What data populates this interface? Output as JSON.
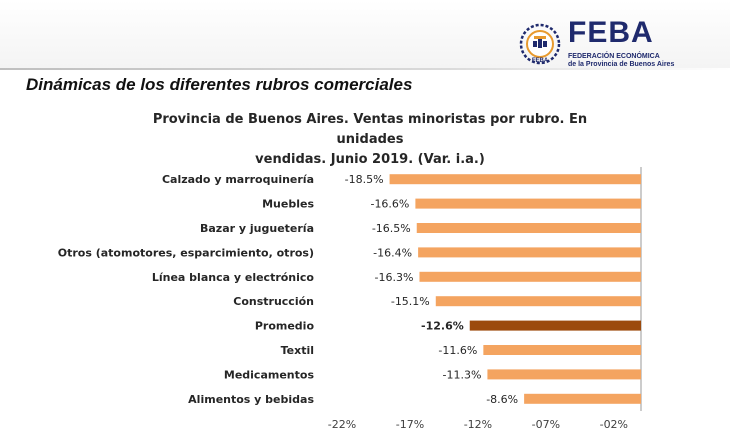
{
  "header": {
    "logo_emblem_text": "FEBA",
    "logo_word": "FEBA",
    "logo_subtitle_line1": "FEDERACIÓN ECONÓMICA",
    "logo_subtitle_line2": "de la Provincia de Buenos Aires",
    "brand_color": "#1f2a6d",
    "emblem_color": "#e89a2e"
  },
  "section_title": "Dinámicas de los diferentes rubros comerciales",
  "chart_data": {
    "type": "bar",
    "orientation": "horizontal",
    "title_line1": "Provincia de Buenos Aires. Ventas minoristas por rubro. En unidades",
    "title_line2": "vendidas. Junio 2019. (Var. i.a.)",
    "categories": [
      "Calzado y marroquinería",
      "Muebles",
      "Bazar y juguetería",
      "Otros (atomotores, esparcimiento, otros)",
      "Línea blanca y electrónico",
      "Construcción",
      "Promedio",
      "Textil",
      "Medicamentos",
      "Alimentos y bebidas"
    ],
    "values": [
      -18.5,
      -16.6,
      -16.5,
      -16.4,
      -16.3,
      -15.1,
      -12.6,
      -11.6,
      -11.3,
      -8.6
    ],
    "value_labels": [
      "-18.5%",
      "-16.6%",
      "-16.5%",
      "-16.4%",
      "-16.3%",
      "-15.1%",
      "-12.6%",
      "-11.6%",
      "-11.3%",
      "-8.6%"
    ],
    "highlight_category": "Promedio",
    "xlim": [
      -22,
      0
    ],
    "x_ticks": [
      -22,
      -17,
      -12,
      -7,
      -2
    ],
    "x_tick_labels": [
      "-22%",
      "-17%",
      "-12%",
      "-07%",
      "-02%"
    ],
    "bar_color": "#f4a460",
    "highlight_color": "#9c4a0c",
    "grid": false,
    "legend": "none"
  }
}
